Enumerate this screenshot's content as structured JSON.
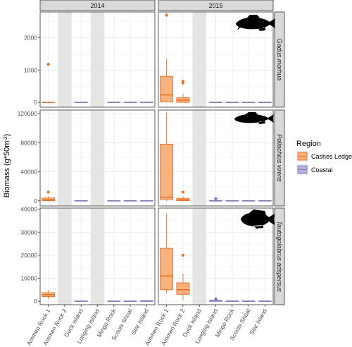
{
  "chart_data": {
    "type": "box",
    "facet_columns": [
      "2014",
      "2015"
    ],
    "facet_rows": [
      "Gadus morhua",
      "Pollachius virens",
      "Tautogolabrus adspersus"
    ],
    "categories": [
      "Ammen Rock 1",
      "Ammen Rock 2",
      "Duck Island",
      "Lunging Island",
      "Mingo Rock",
      "Scouts Shoal",
      "Star Island"
    ],
    "ylabel": "Biomass (g*50m",
    "ylabel_sup": "-2",
    "ylabel_close": ")",
    "legend": {
      "title": "Region",
      "position": "right",
      "entries": [
        {
          "label": "Cashes Ledge",
          "fill": "#F9B27D",
          "stroke": "#E4722A"
        },
        {
          "label": "Coastal",
          "fill": "#B7B1DA",
          "stroke": "#7D72B8"
        }
      ]
    },
    "region_of_category": [
      "Cashes Ledge",
      "Cashes Ledge",
      "Coastal",
      "Coastal",
      "Coastal",
      "Coastal",
      "Coastal"
    ],
    "colors": {
      "panel_bg": "#FFFFFF",
      "grid": "#EBEBEB",
      "strip_bg": "#D9D9D9",
      "missing_band": "#E5E5E5",
      "outlier_fill": "#E4722A"
    },
    "rows": [
      {
        "species": "Gadus morhua",
        "ylim": [
          -150,
          2800
        ],
        "yticks": [
          0,
          1000,
          2000
        ],
        "ytick_labels": [
          "0",
          "1000",
          "2000"
        ],
        "panels": {
          "2014": {
            "missing": [
              "Ammen Rock 2",
              "Lunging Island"
            ],
            "boxes": [
              {
                "category": "Ammen Rock 1",
                "q1": 0,
                "median": 0,
                "q3": 0,
                "whisker_low": 0,
                "whisker_high": 0,
                "outliers": [
                  1180
                ]
              },
              {
                "category": "Duck Island",
                "q1": 0,
                "median": 0,
                "q3": 0,
                "whisker_low": 0,
                "whisker_high": 0,
                "outliers": []
              },
              {
                "category": "Mingo Rock",
                "q1": 0,
                "median": 0,
                "q3": 0,
                "whisker_low": 0,
                "whisker_high": 0,
                "outliers": []
              },
              {
                "category": "Scouts Shoal",
                "q1": 0,
                "median": 0,
                "q3": 0,
                "whisker_low": 0,
                "whisker_high": 0,
                "outliers": []
              },
              {
                "category": "Star Island",
                "q1": 0,
                "median": 0,
                "q3": 0,
                "whisker_low": 0,
                "whisker_high": 0,
                "outliers": []
              }
            ]
          },
          "2015": {
            "missing": [
              "Duck Island"
            ],
            "boxes": [
              {
                "category": "Ammen Rock 1",
                "q1": 20,
                "median": 230,
                "q3": 810,
                "whisker_low": 0,
                "whisker_high": 1350,
                "outliers": [
                  2700
                ]
              },
              {
                "category": "Ammen Rock 2",
                "q1": 0,
                "median": 70,
                "q3": 150,
                "whisker_low": 0,
                "whisker_high": 260,
                "outliers": [
                  600,
                  650
                ]
              },
              {
                "category": "Lunging Island",
                "q1": 0,
                "median": 0,
                "q3": 0,
                "whisker_low": 0,
                "whisker_high": 0,
                "outliers": []
              },
              {
                "category": "Mingo Rock",
                "q1": 0,
                "median": 0,
                "q3": 0,
                "whisker_low": 0,
                "whisker_high": 0,
                "outliers": []
              },
              {
                "category": "Scouts Shoal",
                "q1": 0,
                "median": 0,
                "q3": 0,
                "whisker_low": 0,
                "whisker_high": 0,
                "outliers": []
              },
              {
                "category": "Star Island",
                "q1": 0,
                "median": 0,
                "q3": 0,
                "whisker_low": 0,
                "whisker_high": 0,
                "outliers": []
              }
            ]
          }
        }
      },
      {
        "species": "Pollachius virens",
        "ylim": [
          -7000,
          125000
        ],
        "yticks": [
          0,
          40000,
          80000,
          120000
        ],
        "ytick_labels": [
          "0",
          "40000",
          "80000",
          "120000"
        ],
        "panels": {
          "2014": {
            "missing": [
              "Ammen Rock 2",
              "Lunging Island"
            ],
            "boxes": [
              {
                "category": "Ammen Rock 1",
                "q1": 200,
                "median": 1500,
                "q3": 4000,
                "whisker_low": 0,
                "whisker_high": 6000,
                "outliers": [
                  12000
                ]
              },
              {
                "category": "Duck Island",
                "q1": 0,
                "median": 0,
                "q3": 0,
                "whisker_low": 0,
                "whisker_high": 0,
                "outliers": []
              },
              {
                "category": "Mingo Rock",
                "q1": 0,
                "median": 0,
                "q3": 0,
                "whisker_low": 0,
                "whisker_high": 0,
                "outliers": []
              },
              {
                "category": "Scouts Shoal",
                "q1": 0,
                "median": 0,
                "q3": 0,
                "whisker_low": 0,
                "whisker_high": 0,
                "outliers": []
              },
              {
                "category": "Star Island",
                "q1": 0,
                "median": 0,
                "q3": 0,
                "whisker_low": 0,
                "whisker_high": 0,
                "outliers": []
              }
            ]
          },
          "2015": {
            "missing": [
              "Duck Island"
            ],
            "boxes": [
              {
                "category": "Ammen Rock 1",
                "q1": 2000,
                "median": 5000,
                "q3": 78000,
                "whisker_low": 0,
                "whisker_high": 122000,
                "outliers": []
              },
              {
                "category": "Ammen Rock 2",
                "q1": 300,
                "median": 1500,
                "q3": 3500,
                "whisker_low": 0,
                "whisker_high": 6000,
                "outliers": [
                  12000
                ]
              },
              {
                "category": "Lunging Island",
                "q1": 0,
                "median": 0,
                "q3": 500,
                "whisker_low": 0,
                "whisker_high": 1500,
                "outliers": [
                  3000
                ]
              },
              {
                "category": "Mingo Rock",
                "q1": 0,
                "median": 0,
                "q3": 0,
                "whisker_low": 0,
                "whisker_high": 0,
                "outliers": []
              },
              {
                "category": "Scouts Shoal",
                "q1": 0,
                "median": 0,
                "q3": 0,
                "whisker_low": 0,
                "whisker_high": 0,
                "outliers": []
              },
              {
                "category": "Star Island",
                "q1": 0,
                "median": 0,
                "q3": 0,
                "whisker_low": 0,
                "whisker_high": 0,
                "outliers": []
              }
            ]
          }
        }
      },
      {
        "species": "Tautogolabrus adspersus",
        "ylim": [
          -1500,
          40500
        ],
        "yticks": [
          0,
          10000,
          20000,
          30000,
          40000
        ],
        "ytick_labels": [
          "0",
          "10000",
          "20000",
          "30000",
          "40000"
        ],
        "panels": {
          "2014": {
            "missing": [
              "Ammen Rock 2",
              "Lunging Island"
            ],
            "boxes": [
              {
                "category": "Ammen Rock 1",
                "q1": 2000,
                "median": 2800,
                "q3": 3700,
                "whisker_low": 1000,
                "whisker_high": 4800,
                "outliers": []
              },
              {
                "category": "Duck Island",
                "q1": 0,
                "median": 0,
                "q3": 0,
                "whisker_low": 0,
                "whisker_high": 0,
                "outliers": []
              },
              {
                "category": "Mingo Rock",
                "q1": 0,
                "median": 0,
                "q3": 0,
                "whisker_low": 0,
                "whisker_high": 0,
                "outliers": []
              },
              {
                "category": "Scouts Shoal",
                "q1": 0,
                "median": 0,
                "q3": 0,
                "whisker_low": 0,
                "whisker_high": 0,
                "outliers": []
              },
              {
                "category": "Star Island",
                "q1": 0,
                "median": 0,
                "q3": 200,
                "whisker_low": 0,
                "whisker_high": 400,
                "outliers": []
              }
            ]
          },
          "2015": {
            "missing": [
              "Duck Island"
            ],
            "boxes": [
              {
                "category": "Ammen Rock 1",
                "q1": 5000,
                "median": 11000,
                "q3": 23000,
                "whisker_low": 3500,
                "whisker_high": 38000,
                "outliers": []
              },
              {
                "category": "Ammen Rock 2",
                "q1": 3000,
                "median": 5000,
                "q3": 8000,
                "whisker_low": 500,
                "whisker_high": 12000,
                "outliers": [
                  20000
                ]
              },
              {
                "category": "Lunging Island",
                "q1": 0,
                "median": 100,
                "q3": 400,
                "whisker_low": 0,
                "whisker_high": 800,
                "outliers": [
                  1000
                ]
              },
              {
                "category": "Mingo Rock",
                "q1": 0,
                "median": 0,
                "q3": 100,
                "whisker_low": 0,
                "whisker_high": 200,
                "outliers": []
              },
              {
                "category": "Scouts Shoal",
                "q1": 0,
                "median": 0,
                "q3": 100,
                "whisker_low": 0,
                "whisker_high": 200,
                "outliers": []
              },
              {
                "category": "Star Island",
                "q1": 0,
                "median": 0,
                "q3": 100,
                "whisker_low": 0,
                "whisker_high": 200,
                "outliers": []
              }
            ]
          }
        }
      }
    ]
  }
}
